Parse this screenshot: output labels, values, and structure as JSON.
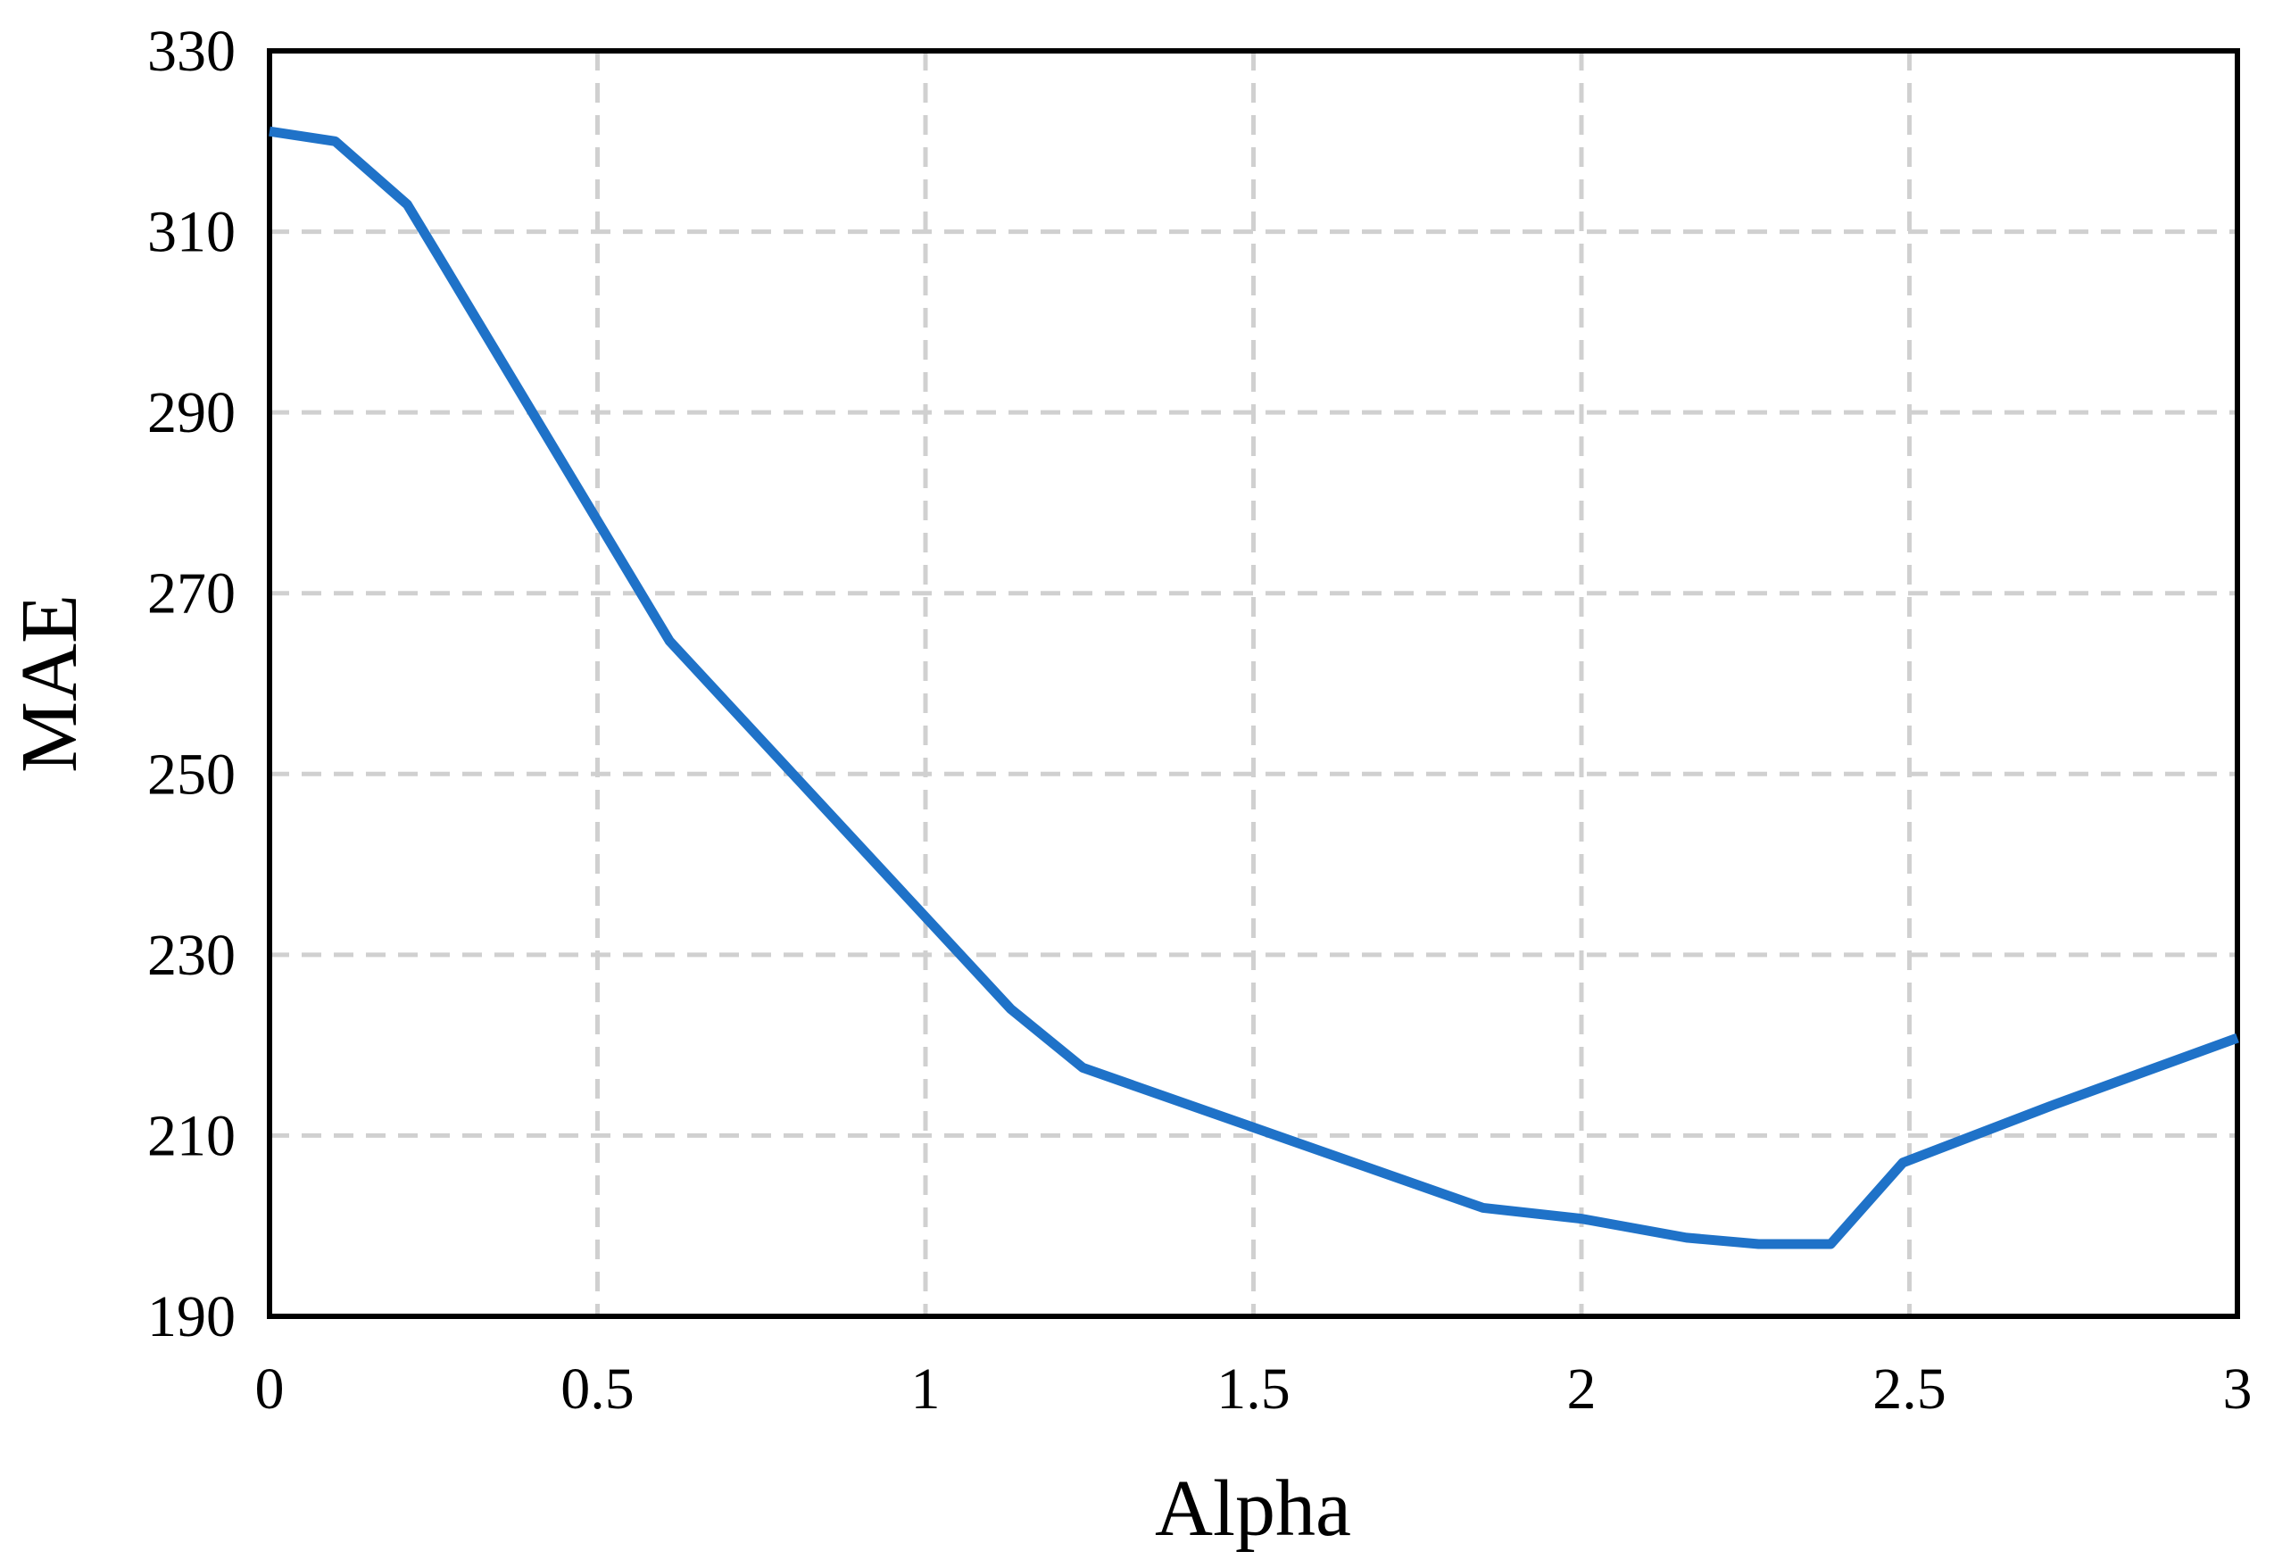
{
  "chart_data": {
    "type": "line",
    "x_label": "Alpha",
    "y_label": "MAE",
    "x": [
      0,
      0.1,
      0.21,
      0.26,
      0.61,
      1.13,
      1.24,
      1.85,
      2.0,
      2.16,
      2.27,
      2.38,
      2.49,
      2.72,
      3
    ],
    "series": [
      {
        "color": "#1f72c8",
        "values": [
          321.1,
          320,
          313,
          307,
          264.7,
          224,
          217.5,
          202,
          200.8,
          198.7,
          198,
          198,
          207,
          213.4,
          220.8
        ]
      }
    ],
    "xlim": [
      0,
      3
    ],
    "xticks": [
      0,
      0.5,
      1,
      1.5,
      2,
      2.5,
      3
    ],
    "ylim": [
      190,
      330
    ],
    "yticks": [
      190,
      210,
      230,
      250,
      270,
      290,
      310,
      330
    ],
    "grid": true
  }
}
